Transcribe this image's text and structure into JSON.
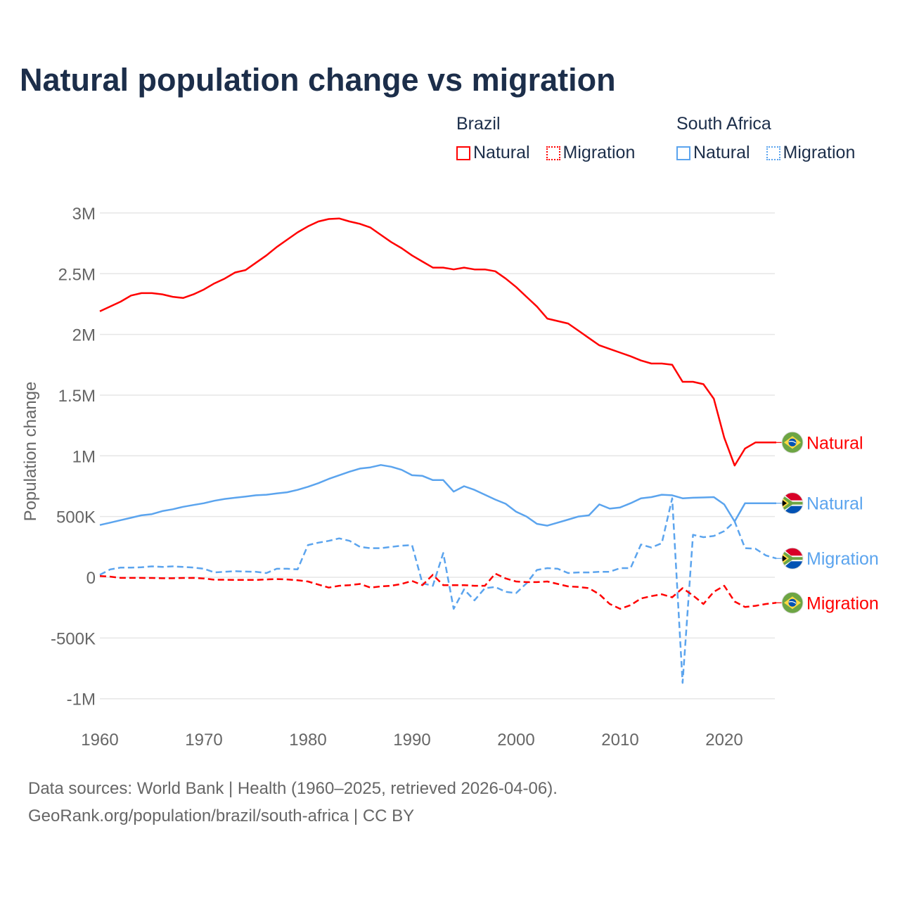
{
  "title": "Natural population change vs migration",
  "legend": {
    "groups": [
      {
        "name": "Brazil",
        "items": [
          {
            "label": "Natural",
            "style": "solid",
            "color": "#ff0000"
          },
          {
            "label": "Migration",
            "style": "dotted",
            "color": "#ff0000"
          }
        ]
      },
      {
        "name": "South Africa",
        "items": [
          {
            "label": "Natural",
            "style": "solid",
            "color": "#5ba4ee"
          },
          {
            "label": "Migration",
            "style": "dotted",
            "color": "#5ba4ee"
          }
        ]
      }
    ]
  },
  "footer": {
    "line1": "Data sources: World Bank | Health (1960–2025, retrieved 2026-04-06).",
    "line2": "GeoRank.org/population/brazil/south-africa | CC BY"
  },
  "chart_data": {
    "type": "line",
    "title": "Natural population change vs migration",
    "xlabel": "",
    "ylabel": "Population change",
    "xlim": [
      1960,
      2025
    ],
    "ylim": [
      -1000000,
      3000000
    ],
    "x_ticks": [
      1960,
      1970,
      1980,
      1990,
      2000,
      2010,
      2020
    ],
    "x_tick_labels": [
      "1960",
      "1970",
      "1980",
      "1990",
      "2000",
      "2010",
      "2020"
    ],
    "y_ticks": [
      -1000000,
      -500000,
      0,
      500000,
      1000000,
      1500000,
      2000000,
      2500000,
      3000000
    ],
    "y_tick_labels": [
      "-1M",
      "-500K",
      "0",
      "500K",
      "1M",
      "1.5M",
      "2M",
      "2.5M",
      "3M"
    ],
    "grid": true,
    "legend_position": "top-right",
    "x_start": 1960,
    "series": [
      {
        "name": "Brazil Natural",
        "end_label": "Natural",
        "country": "Brazil",
        "color": "#ff0000",
        "dashed": false,
        "values": [
          2.19,
          2.23,
          2.27,
          2.32,
          2.34,
          2.34,
          2.33,
          2.31,
          2.3,
          2.33,
          2.37,
          2.42,
          2.46,
          2.51,
          2.53,
          2.59,
          2.65,
          2.72,
          2.78,
          2.84,
          2.89,
          2.93,
          2.95,
          2.955,
          2.93,
          2.91,
          2.88,
          2.82,
          2.76,
          2.71,
          2.65,
          2.6,
          2.55,
          2.55,
          2.535,
          2.55,
          2.535,
          2.535,
          2.52,
          2.46,
          2.39,
          2.31,
          2.23,
          2.13,
          2.11,
          2.09,
          2.03,
          1.97,
          1.91,
          1.88,
          1.85,
          1.82,
          1.785,
          1.76,
          1.76,
          1.75,
          1.61,
          1.61,
          1.59,
          1.47,
          1.15,
          0.92,
          1.06,
          1.11,
          1.11,
          1.11
        ],
        "unit": "million"
      },
      {
        "name": "South Africa Natural",
        "end_label": "Natural",
        "country": "South Africa",
        "color": "#5ba4ee",
        "dashed": false,
        "values": [
          0.43,
          0.45,
          0.47,
          0.49,
          0.51,
          0.52,
          0.545,
          0.56,
          0.58,
          0.595,
          0.61,
          0.63,
          0.645,
          0.655,
          0.665,
          0.675,
          0.68,
          0.69,
          0.7,
          0.72,
          0.745,
          0.775,
          0.81,
          0.84,
          0.87,
          0.895,
          0.905,
          0.925,
          0.91,
          0.885,
          0.84,
          0.835,
          0.8,
          0.8,
          0.705,
          0.75,
          0.72,
          0.68,
          0.64,
          0.605,
          0.54,
          0.5,
          0.44,
          0.425,
          0.45,
          0.475,
          0.5,
          0.51,
          0.6,
          0.565,
          0.575,
          0.61,
          0.65,
          0.66,
          0.68,
          0.675,
          0.65,
          0.655,
          0.657,
          0.66,
          0.6,
          0.46,
          0.61,
          0.61,
          0.61,
          0.61
        ],
        "unit": "million"
      },
      {
        "name": "South Africa Migration",
        "end_label": "Migration",
        "country": "South Africa",
        "color": "#5ba4ee",
        "dashed": true,
        "values": [
          0.02,
          0.065,
          0.08,
          0.08,
          0.082,
          0.09,
          0.085,
          0.09,
          0.085,
          0.08,
          0.07,
          0.04,
          0.045,
          0.05,
          0.047,
          0.045,
          0.035,
          0.07,
          0.07,
          0.065,
          0.265,
          0.285,
          0.3,
          0.32,
          0.3,
          0.25,
          0.24,
          0.24,
          0.25,
          0.26,
          0.265,
          -0.05,
          -0.07,
          0.2,
          -0.26,
          -0.1,
          -0.19,
          -0.09,
          -0.08,
          -0.12,
          -0.13,
          -0.05,
          0.06,
          0.075,
          0.07,
          0.035,
          0.04,
          0.04,
          0.045,
          0.045,
          0.075,
          0.075,
          0.27,
          0.245,
          0.28,
          0.65,
          -0.87,
          0.35,
          0.33,
          0.34,
          0.38,
          0.46,
          0.24,
          0.235,
          0.18,
          0.155
        ],
        "unit": "million"
      },
      {
        "name": "Brazil Migration",
        "end_label": "Migration",
        "country": "Brazil",
        "color": "#ff0000",
        "dashed": true,
        "values": [
          0.01,
          0.005,
          -0.005,
          -0.005,
          -0.005,
          -0.006,
          -0.008,
          -0.008,
          -0.006,
          -0.005,
          -0.01,
          -0.02,
          -0.02,
          -0.022,
          -0.022,
          -0.022,
          -0.018,
          -0.015,
          -0.018,
          -0.025,
          -0.035,
          -0.06,
          -0.085,
          -0.07,
          -0.065,
          -0.055,
          -0.085,
          -0.075,
          -0.07,
          -0.055,
          -0.03,
          -0.065,
          0.02,
          -0.065,
          -0.065,
          -0.065,
          -0.07,
          -0.07,
          0.03,
          -0.01,
          -0.035,
          -0.04,
          -0.04,
          -0.035,
          -0.055,
          -0.075,
          -0.08,
          -0.09,
          -0.14,
          -0.22,
          -0.26,
          -0.23,
          -0.175,
          -0.155,
          -0.14,
          -0.165,
          -0.09,
          -0.15,
          -0.22,
          -0.12,
          -0.07,
          -0.2,
          -0.245,
          -0.235,
          -0.22,
          -0.21
        ],
        "unit": "million"
      }
    ]
  }
}
